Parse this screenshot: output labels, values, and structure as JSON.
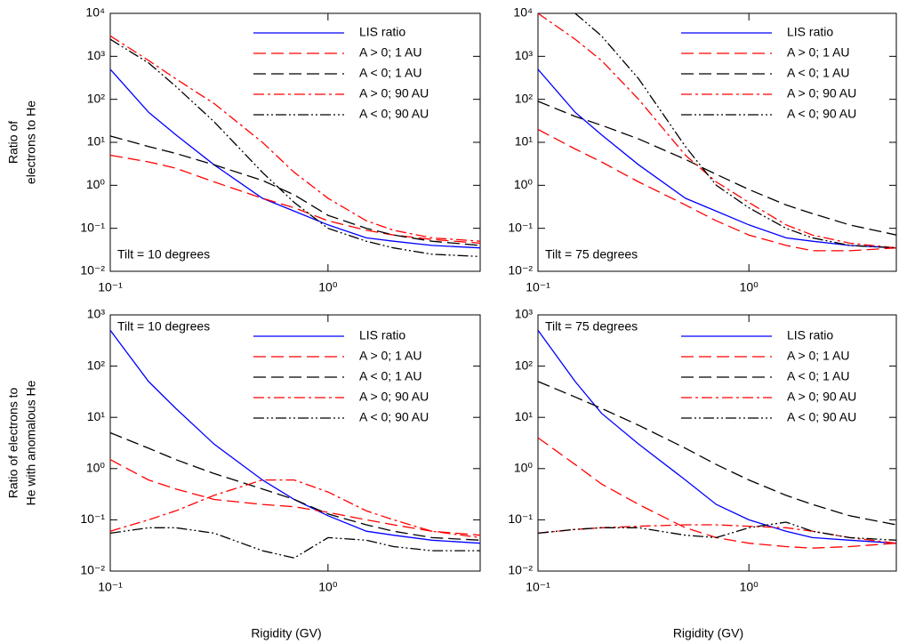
{
  "chart_data": [
    {
      "type": "line",
      "y_label": [
        "Ratio of",
        "electrons to He"
      ],
      "annotation": "Tilt = 10 degrees",
      "log_x": true,
      "log_y": true,
      "x": [
        0.1,
        0.15,
        0.2,
        0.3,
        0.5,
        0.7,
        1,
        1.5,
        2,
        3,
        5
      ],
      "xlim": [
        0.1,
        5
      ],
      "xticks": [
        {
          "value": 0.1,
          "label": "10⁻¹"
        },
        {
          "value": 1,
          "label": "10⁰"
        }
      ],
      "ylim": [
        0.01,
        10000
      ],
      "yticks": [
        {
          "value": 0.01,
          "label": "10⁻²"
        },
        {
          "value": 0.1,
          "label": "10⁻¹"
        },
        {
          "value": 1,
          "label": "10⁰"
        },
        {
          "value": 10,
          "label": "10¹"
        },
        {
          "value": 100,
          "label": "10²"
        },
        {
          "value": 1000,
          "label": "10³"
        },
        {
          "value": 10000,
          "label": "10⁴"
        }
      ],
      "series": [
        {
          "name": "LIS ratio",
          "color": "#0000ff",
          "style": "solid",
          "values": [
            500,
            50,
            15,
            3,
            0.5,
            0.25,
            0.12,
            0.06,
            0.05,
            0.04,
            0.035
          ]
        },
        {
          "name": "A > 0; 1 AU",
          "color": "#ff0000",
          "style": "dashed",
          "values": [
            5,
            3.5,
            2.5,
            1.2,
            0.5,
            0.3,
            0.15,
            0.09,
            0.07,
            0.055,
            0.045
          ]
        },
        {
          "name": "A < 0; 1 AU",
          "color": "#000000",
          "style": "dashed",
          "values": [
            14,
            8,
            5.5,
            3,
            1.3,
            0.6,
            0.2,
            0.1,
            0.07,
            0.05,
            0.04
          ]
        },
        {
          "name": "A > 0; 90 AU",
          "color": "#ff0000",
          "style": "dashdot",
          "values": [
            3000,
            800,
            300,
            80,
            10,
            2,
            0.5,
            0.15,
            0.09,
            0.06,
            0.05
          ]
        },
        {
          "name": "A < 0; 90 AU",
          "color": "#000000",
          "style": "dashdotdot",
          "values": [
            2500,
            700,
            200,
            30,
            2,
            0.4,
            0.1,
            0.05,
            0.035,
            0.025,
            0.022
          ]
        }
      ]
    },
    {
      "type": "line",
      "annotation": "Tilt = 75 degrees",
      "log_x": true,
      "log_y": true,
      "x": [
        0.1,
        0.15,
        0.2,
        0.3,
        0.5,
        0.7,
        1,
        1.5,
        2,
        3,
        5
      ],
      "xlim": [
        0.1,
        5
      ],
      "xticks": [
        {
          "value": 0.1,
          "label": "10⁻¹"
        },
        {
          "value": 1,
          "label": "10⁰"
        }
      ],
      "ylim": [
        0.01,
        10000
      ],
      "yticks": [
        {
          "value": 0.01,
          "label": "10⁻²"
        },
        {
          "value": 0.1,
          "label": "10⁻¹"
        },
        {
          "value": 1,
          "label": "10⁰"
        },
        {
          "value": 10,
          "label": "10¹"
        },
        {
          "value": 100,
          "label": "10²"
        },
        {
          "value": 1000,
          "label": "10³"
        },
        {
          "value": 10000,
          "label": "10⁴"
        }
      ],
      "series": [
        {
          "name": "LIS ratio",
          "color": "#0000ff",
          "style": "solid",
          "values": [
            500,
            50,
            15,
            3,
            0.5,
            0.25,
            0.12,
            0.06,
            0.05,
            0.04,
            0.035
          ]
        },
        {
          "name": "A > 0; 1 AU",
          "color": "#ff0000",
          "style": "dashed",
          "values": [
            20,
            7,
            3.5,
            1.2,
            0.35,
            0.15,
            0.07,
            0.04,
            0.03,
            0.03,
            0.035
          ]
        },
        {
          "name": "A < 0; 1 AU",
          "color": "#000000",
          "style": "dashed",
          "values": [
            90,
            40,
            25,
            12,
            4,
            1.8,
            0.8,
            0.35,
            0.22,
            0.12,
            0.07
          ]
        },
        {
          "name": "A > 0; 90 AU",
          "color": "#ff0000",
          "style": "dashdot",
          "values": [
            10000,
            2500,
            800,
            100,
            5,
            1.2,
            0.4,
            0.12,
            0.07,
            0.045,
            0.035
          ]
        },
        {
          "name": "A < 0; 90 AU",
          "color": "#000000",
          "style": "dashdotdot",
          "values": [
            null,
            10000,
            3000,
            300,
            8,
            1,
            0.3,
            0.1,
            0.06,
            0.04,
            0.035
          ]
        }
      ]
    },
    {
      "type": "line",
      "y_label": [
        "Ratio of electrons to",
        "He with anomalous He"
      ],
      "x_label": "Rigidity (GV)",
      "annotation": "Tilt = 10 degrees",
      "log_x": true,
      "log_y": true,
      "x": [
        0.1,
        0.15,
        0.2,
        0.3,
        0.5,
        0.7,
        1,
        1.5,
        2,
        3,
        5
      ],
      "xlim": [
        0.1,
        5
      ],
      "xticks": [
        {
          "value": 0.1,
          "label": "10⁻¹"
        },
        {
          "value": 1,
          "label": "10⁰"
        }
      ],
      "ylim": [
        0.01,
        1000
      ],
      "yticks": [
        {
          "value": 0.01,
          "label": "10⁻²"
        },
        {
          "value": 0.1,
          "label": "10⁻¹"
        },
        {
          "value": 1,
          "label": "10⁰"
        },
        {
          "value": 10,
          "label": "10¹"
        },
        {
          "value": 100,
          "label": "10²"
        },
        {
          "value": 1000,
          "label": "10³"
        }
      ],
      "series": [
        {
          "name": "LIS ratio",
          "color": "#0000ff",
          "style": "solid",
          "values": [
            500,
            50,
            15,
            3,
            0.6,
            0.25,
            0.12,
            0.06,
            0.05,
            0.04,
            0.035
          ]
        },
        {
          "name": "A > 0; 1 AU",
          "color": "#ff0000",
          "style": "dashed",
          "values": [
            1.5,
            0.6,
            0.4,
            0.25,
            0.2,
            0.18,
            0.14,
            0.1,
            0.08,
            0.06,
            0.05
          ]
        },
        {
          "name": "A < 0; 1 AU",
          "color": "#000000",
          "style": "dashed",
          "values": [
            5,
            2.5,
            1.5,
            0.8,
            0.4,
            0.25,
            0.13,
            0.08,
            0.06,
            0.045,
            0.04
          ]
        },
        {
          "name": "A > 0; 90 AU",
          "color": "#ff0000",
          "style": "dashdot",
          "values": [
            0.06,
            0.1,
            0.15,
            0.3,
            0.6,
            0.6,
            0.35,
            0.15,
            0.1,
            0.06,
            0.045
          ]
        },
        {
          "name": "A < 0; 90 AU",
          "color": "#000000",
          "style": "dashdotdot",
          "values": [
            0.055,
            0.07,
            0.07,
            0.055,
            0.025,
            0.018,
            0.045,
            0.04,
            0.03,
            0.025,
            0.025
          ]
        }
      ]
    },
    {
      "type": "line",
      "x_label": "Rigidity (GV)",
      "annotation": "Tilt = 75 degrees",
      "log_x": true,
      "log_y": true,
      "x": [
        0.1,
        0.15,
        0.2,
        0.3,
        0.5,
        0.7,
        1,
        1.5,
        2,
        3,
        5
      ],
      "xlim": [
        0.1,
        5
      ],
      "xticks": [
        {
          "value": 0.1,
          "label": "10⁻¹"
        },
        {
          "value": 1,
          "label": "10⁰"
        }
      ],
      "ylim": [
        0.01,
        1000
      ],
      "yticks": [
        {
          "value": 0.01,
          "label": "10⁻²"
        },
        {
          "value": 0.1,
          "label": "10⁻¹"
        },
        {
          "value": 1,
          "label": "10⁰"
        },
        {
          "value": 10,
          "label": "10¹"
        },
        {
          "value": 100,
          "label": "10²"
        },
        {
          "value": 1000,
          "label": "10³"
        }
      ],
      "series": [
        {
          "name": "LIS ratio",
          "color": "#0000ff",
          "style": "solid",
          "values": [
            500,
            50,
            12,
            3,
            0.6,
            0.2,
            0.1,
            0.06,
            0.045,
            0.04,
            0.035
          ]
        },
        {
          "name": "A > 0; 1 AU",
          "color": "#ff0000",
          "style": "dashed",
          "values": [
            4,
            1.2,
            0.5,
            0.2,
            0.07,
            0.045,
            0.035,
            0.03,
            0.028,
            0.03,
            0.035
          ]
        },
        {
          "name": "A < 0; 1 AU",
          "color": "#000000",
          "style": "dashed",
          "values": [
            50,
            25,
            15,
            7,
            2.5,
            1.2,
            0.6,
            0.3,
            0.2,
            0.12,
            0.08
          ]
        },
        {
          "name": "A > 0; 90 AU",
          "color": "#ff0000",
          "style": "dashdot",
          "values": [
            0.055,
            0.065,
            0.07,
            0.075,
            0.08,
            0.08,
            0.075,
            0.07,
            0.06,
            0.045,
            0.035
          ]
        },
        {
          "name": "A < 0; 90 AU",
          "color": "#000000",
          "style": "dashdotdot",
          "values": [
            0.055,
            0.065,
            0.07,
            0.07,
            0.05,
            0.045,
            0.07,
            0.09,
            0.06,
            0.045,
            0.04
          ]
        }
      ]
    }
  ]
}
